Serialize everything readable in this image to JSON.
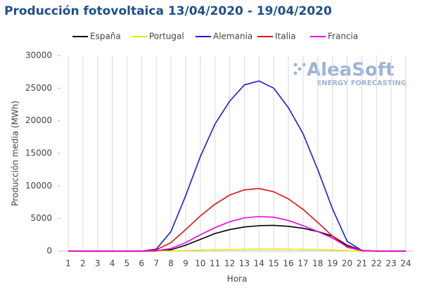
{
  "chart_data": {
    "type": "line",
    "title": "Producción fotovoltaica 13/04/2020 - 19/04/2020",
    "watermark": {
      "brand": "AleaSoft",
      "tagline": "ENERGY FORECASTING"
    },
    "x_label": "Hora",
    "y_label": "Producción media (MWh)",
    "categories": [
      1,
      2,
      3,
      4,
      5,
      6,
      7,
      8,
      9,
      10,
      11,
      12,
      13,
      14,
      15,
      16,
      17,
      18,
      19,
      20,
      21,
      22,
      23,
      24
    ],
    "series": [
      {
        "name": "España",
        "color": "#000000",
        "values": [
          0,
          0,
          0,
          0,
          0,
          0,
          0,
          200,
          900,
          1800,
          2700,
          3300,
          3700,
          3900,
          3950,
          3800,
          3500,
          3000,
          2300,
          900,
          100,
          0,
          0,
          0
        ]
      },
      {
        "name": "Portugal",
        "color": "#e8e800",
        "values": [
          0,
          0,
          0,
          0,
          0,
          0,
          0,
          20,
          80,
          150,
          200,
          240,
          270,
          290,
          300,
          290,
          270,
          230,
          170,
          60,
          10,
          0,
          0,
          0
        ]
      },
      {
        "name": "Alemania",
        "color": "#1a1adf",
        "values": [
          0,
          0,
          0,
          0,
          0,
          0,
          300,
          3000,
          8500,
          14500,
          19500,
          23000,
          25500,
          26100,
          25000,
          22000,
          18000,
          12500,
          6500,
          1500,
          100,
          0,
          0,
          0
        ]
      },
      {
        "name": "Italia",
        "color": "#e01010",
        "values": [
          0,
          0,
          0,
          0,
          0,
          0,
          200,
          1300,
          3300,
          5400,
          7200,
          8600,
          9400,
          9600,
          9100,
          8000,
          6400,
          4400,
          2300,
          600,
          50,
          0,
          0,
          0
        ]
      },
      {
        "name": "Francia",
        "color": "#ee00ee",
        "values": [
          0,
          0,
          0,
          0,
          0,
          0,
          50,
          400,
          1300,
          2500,
          3600,
          4500,
          5100,
          5300,
          5200,
          4700,
          3900,
          3000,
          2000,
          700,
          100,
          0,
          0,
          0
        ]
      }
    ],
    "ylim": [
      0,
      30000
    ],
    "yticks": [
      0,
      5000,
      10000,
      15000,
      20000,
      25000,
      30000
    ],
    "grid": "x",
    "legend": "top"
  }
}
